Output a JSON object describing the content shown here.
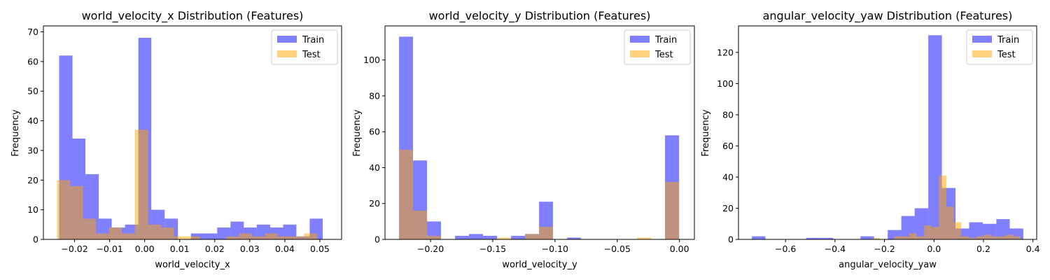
{
  "colors": {
    "train": "#0000ff",
    "test": "#ffa500",
    "train_alpha": 0.5,
    "test_alpha": 0.5
  },
  "chart_data": [
    {
      "type": "bar",
      "title": "world_velocity_x Distribution (Features)",
      "xlabel": "world_velocity_x",
      "ylabel": "Frequency",
      "xlim": [
        -0.0289,
        0.0562
      ],
      "ylim": [
        0,
        72
      ],
      "xticks": [
        -0.02,
        -0.01,
        0.0,
        0.01,
        0.02,
        0.03,
        0.04,
        0.05
      ],
      "xtick_labels": [
        "−0.02",
        "−0.01",
        "0.00",
        "0.01",
        "0.02",
        "0.03",
        "0.04",
        "0.05"
      ],
      "yticks": [
        0,
        10,
        20,
        30,
        40,
        50,
        60,
        70
      ],
      "ytick_labels": [
        "0",
        "10",
        "20",
        "30",
        "40",
        "50",
        "60",
        "70"
      ],
      "legend": {
        "position": "upper right",
        "entries": [
          "Train",
          "Test"
        ]
      },
      "series": [
        {
          "name": "Train",
          "bin_edges": [
            -0.0244,
            -0.0206,
            -0.0169,
            -0.0131,
            -0.0094,
            -0.0056,
            -0.0018,
            0.0019,
            0.0057,
            0.0095,
            0.0132,
            0.017,
            0.0207,
            0.0245,
            0.0283,
            0.032,
            0.0358,
            0.0395,
            0.0433,
            0.0471,
            0.0508
          ],
          "values": [
            62,
            34,
            22,
            7,
            4,
            5,
            68,
            10,
            7,
            0,
            2,
            2,
            4,
            6,
            4,
            5,
            4,
            5,
            1,
            7
          ]
        },
        {
          "name": "Test",
          "bin_edges": [
            -0.025,
            -0.0213,
            -0.0176,
            -0.0139,
            -0.0102,
            -0.0065,
            -0.0028,
            0.001,
            0.0047,
            0.0084,
            0.0121,
            0.0158,
            0.0195,
            0.0232,
            0.0269,
            0.0306,
            0.0343,
            0.038,
            0.0417,
            0.0455,
            0.0492
          ],
          "values": [
            20,
            18,
            7,
            2,
            4,
            2,
            37,
            5,
            4,
            1,
            1,
            0,
            0,
            1,
            2,
            1,
            2,
            1,
            1,
            2
          ]
        }
      ]
    },
    {
      "type": "bar",
      "title": "world_velocity_y Distribution (Features)",
      "xlabel": "world_velocity_y",
      "ylabel": "Frequency",
      "xlim": [
        -0.2366,
        0.012
      ],
      "ylim": [
        0,
        119
      ],
      "xticks": [
        -0.2,
        -0.15,
        -0.1,
        -0.05,
        0.0
      ],
      "xtick_labels": [
        "−0.20",
        "−0.15",
        "−0.10",
        "−0.05",
        "0.00"
      ],
      "yticks": [
        0,
        20,
        40,
        60,
        80,
        100
      ],
      "ytick_labels": [
        "0",
        "20",
        "40",
        "60",
        "80",
        "100"
      ],
      "legend": {
        "position": "upper right",
        "entries": [
          "Train",
          "Test"
        ]
      },
      "series": [
        {
          "name": "Train",
          "bin_edges": [
            -0.2253,
            -0.2141,
            -0.2028,
            -0.1916,
            -0.1803,
            -0.1691,
            -0.1578,
            -0.1466,
            -0.1353,
            -0.1241,
            -0.1128,
            -0.1016,
            -0.0903,
            -0.0791,
            -0.0678,
            -0.0566,
            -0.0453,
            -0.0341,
            -0.0228,
            -0.0116,
            -0.0003
          ],
          "values": [
            113,
            44,
            10,
            0,
            2,
            3,
            2,
            0,
            2,
            3,
            21,
            0,
            1,
            0,
            0,
            0,
            0,
            0,
            0,
            58
          ]
        },
        {
          "name": "Test",
          "bin_edges": [
            -0.2253,
            -0.2141,
            -0.2028,
            -0.1916,
            -0.1803,
            -0.1691,
            -0.1578,
            -0.1466,
            -0.1353,
            -0.1241,
            -0.1128,
            -0.1016,
            -0.0903,
            -0.0791,
            -0.0678,
            -0.0566,
            -0.0453,
            -0.0341,
            -0.0228,
            -0.0116,
            -0.0003
          ],
          "values": [
            50,
            16,
            2,
            0,
            0,
            0,
            0,
            1,
            0,
            3,
            7,
            0,
            0,
            0,
            0,
            0,
            0,
            1,
            0,
            32
          ]
        }
      ]
    },
    {
      "type": "bar",
      "title": "angular_velocity_yaw Distribution (Features)",
      "xlabel": "angular_velocity_yaw",
      "ylabel": "Frequency",
      "xlim": [
        -0.79,
        0.415
      ],
      "ylim": [
        0,
        137
      ],
      "xticks": [
        -0.6,
        -0.4,
        -0.2,
        0.0,
        0.2,
        0.4
      ],
      "xtick_labels": [
        "−0.6",
        "−0.4",
        "−0.2",
        "0.0",
        "0.2",
        "0.4"
      ],
      "yticks": [
        0,
        20,
        40,
        60,
        80,
        100,
        120
      ],
      "ytick_labels": [
        "0",
        "20",
        "40",
        "60",
        "80",
        "100",
        "120"
      ],
      "legend": {
        "position": "upper right",
        "entries": [
          "Train",
          "Test"
        ]
      },
      "series": [
        {
          "name": "Train",
          "bin_edges": [
            -0.736,
            -0.681,
            -0.626,
            -0.571,
            -0.517,
            -0.462,
            -0.407,
            -0.352,
            -0.297,
            -0.242,
            -0.187,
            -0.132,
            -0.078,
            -0.023,
            0.032,
            0.087,
            0.142,
            0.197,
            0.252,
            0.306,
            0.361
          ],
          "values": [
            2,
            0,
            0,
            0,
            1,
            1,
            0,
            0,
            2,
            0,
            6,
            15,
            20,
            131,
            33,
            7,
            11,
            10,
            13,
            7
          ]
        },
        {
          "name": "Test",
          "bin_edges": [
            -0.25,
            -0.22,
            -0.19,
            -0.16,
            -0.13,
            -0.1,
            -0.07,
            -0.04,
            -0.01,
            0.02,
            0.05,
            0.08,
            0.11,
            0.14,
            0.17,
            0.2,
            0.23,
            0.26,
            0.29,
            0.32,
            0.35
          ],
          "values": [
            1,
            0,
            0,
            2,
            2,
            4,
            2,
            9,
            8,
            41,
            21,
            11,
            2,
            1,
            2,
            3,
            2,
            2,
            3,
            2
          ]
        }
      ]
    }
  ]
}
